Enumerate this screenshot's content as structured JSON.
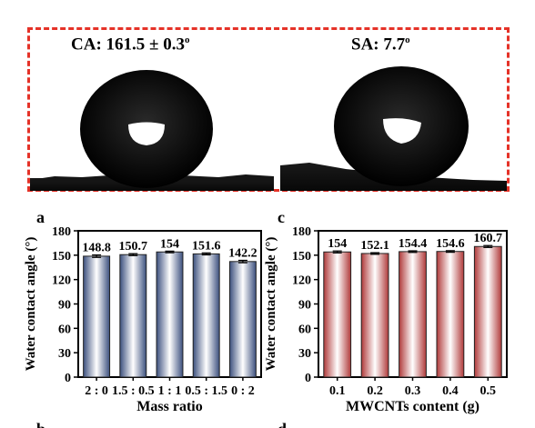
{
  "photo_panel": {
    "ca_prefix": "CA: 161.5 ± 0.3",
    "sa_prefix": "SA: 7.7",
    "degree_mark": "o",
    "frame_color": "#e53228"
  },
  "chart_data": [
    {
      "type": "bar",
      "panel_label": "a",
      "categories": [
        "2 : 0",
        "1.5 : 0.5",
        "1 : 1",
        "0.5 : 1.5",
        "0 : 2"
      ],
      "values": [
        148.8,
        150.7,
        154,
        151.6,
        142.2
      ],
      "value_labels": [
        "148.8",
        "150.7",
        "154",
        "151.6",
        "142.2"
      ],
      "error": [
        1.5,
        1.2,
        1.0,
        1.2,
        1.5
      ],
      "xlabel": "Mass ratio",
      "ylabel": "Water contact angle (°)",
      "ylim": [
        0,
        180
      ],
      "yticks": [
        0,
        30,
        60,
        90,
        120,
        150,
        180
      ],
      "bar_color": "#4a5f8c",
      "grid": false
    },
    {
      "type": "bar",
      "panel_label": "c",
      "categories": [
        "0.1",
        "0.2",
        "0.3",
        "0.4",
        "0.5"
      ],
      "values": [
        154,
        152.1,
        154.4,
        154.6,
        160.7
      ],
      "value_labels": [
        "154",
        "152.1",
        "154.4",
        "154.6",
        "160.7"
      ],
      "error": [
        1.2,
        1.0,
        1.0,
        1.0,
        1.2
      ],
      "xlabel": "MWCNTs content (g)",
      "ylabel": "Water contact angle (°)",
      "ylim": [
        0,
        180
      ],
      "yticks": [
        0,
        30,
        60,
        90,
        120,
        150,
        180
      ],
      "bar_color": "#b03a3a",
      "grid": false
    }
  ],
  "partial_labels": [
    "b",
    "d"
  ]
}
